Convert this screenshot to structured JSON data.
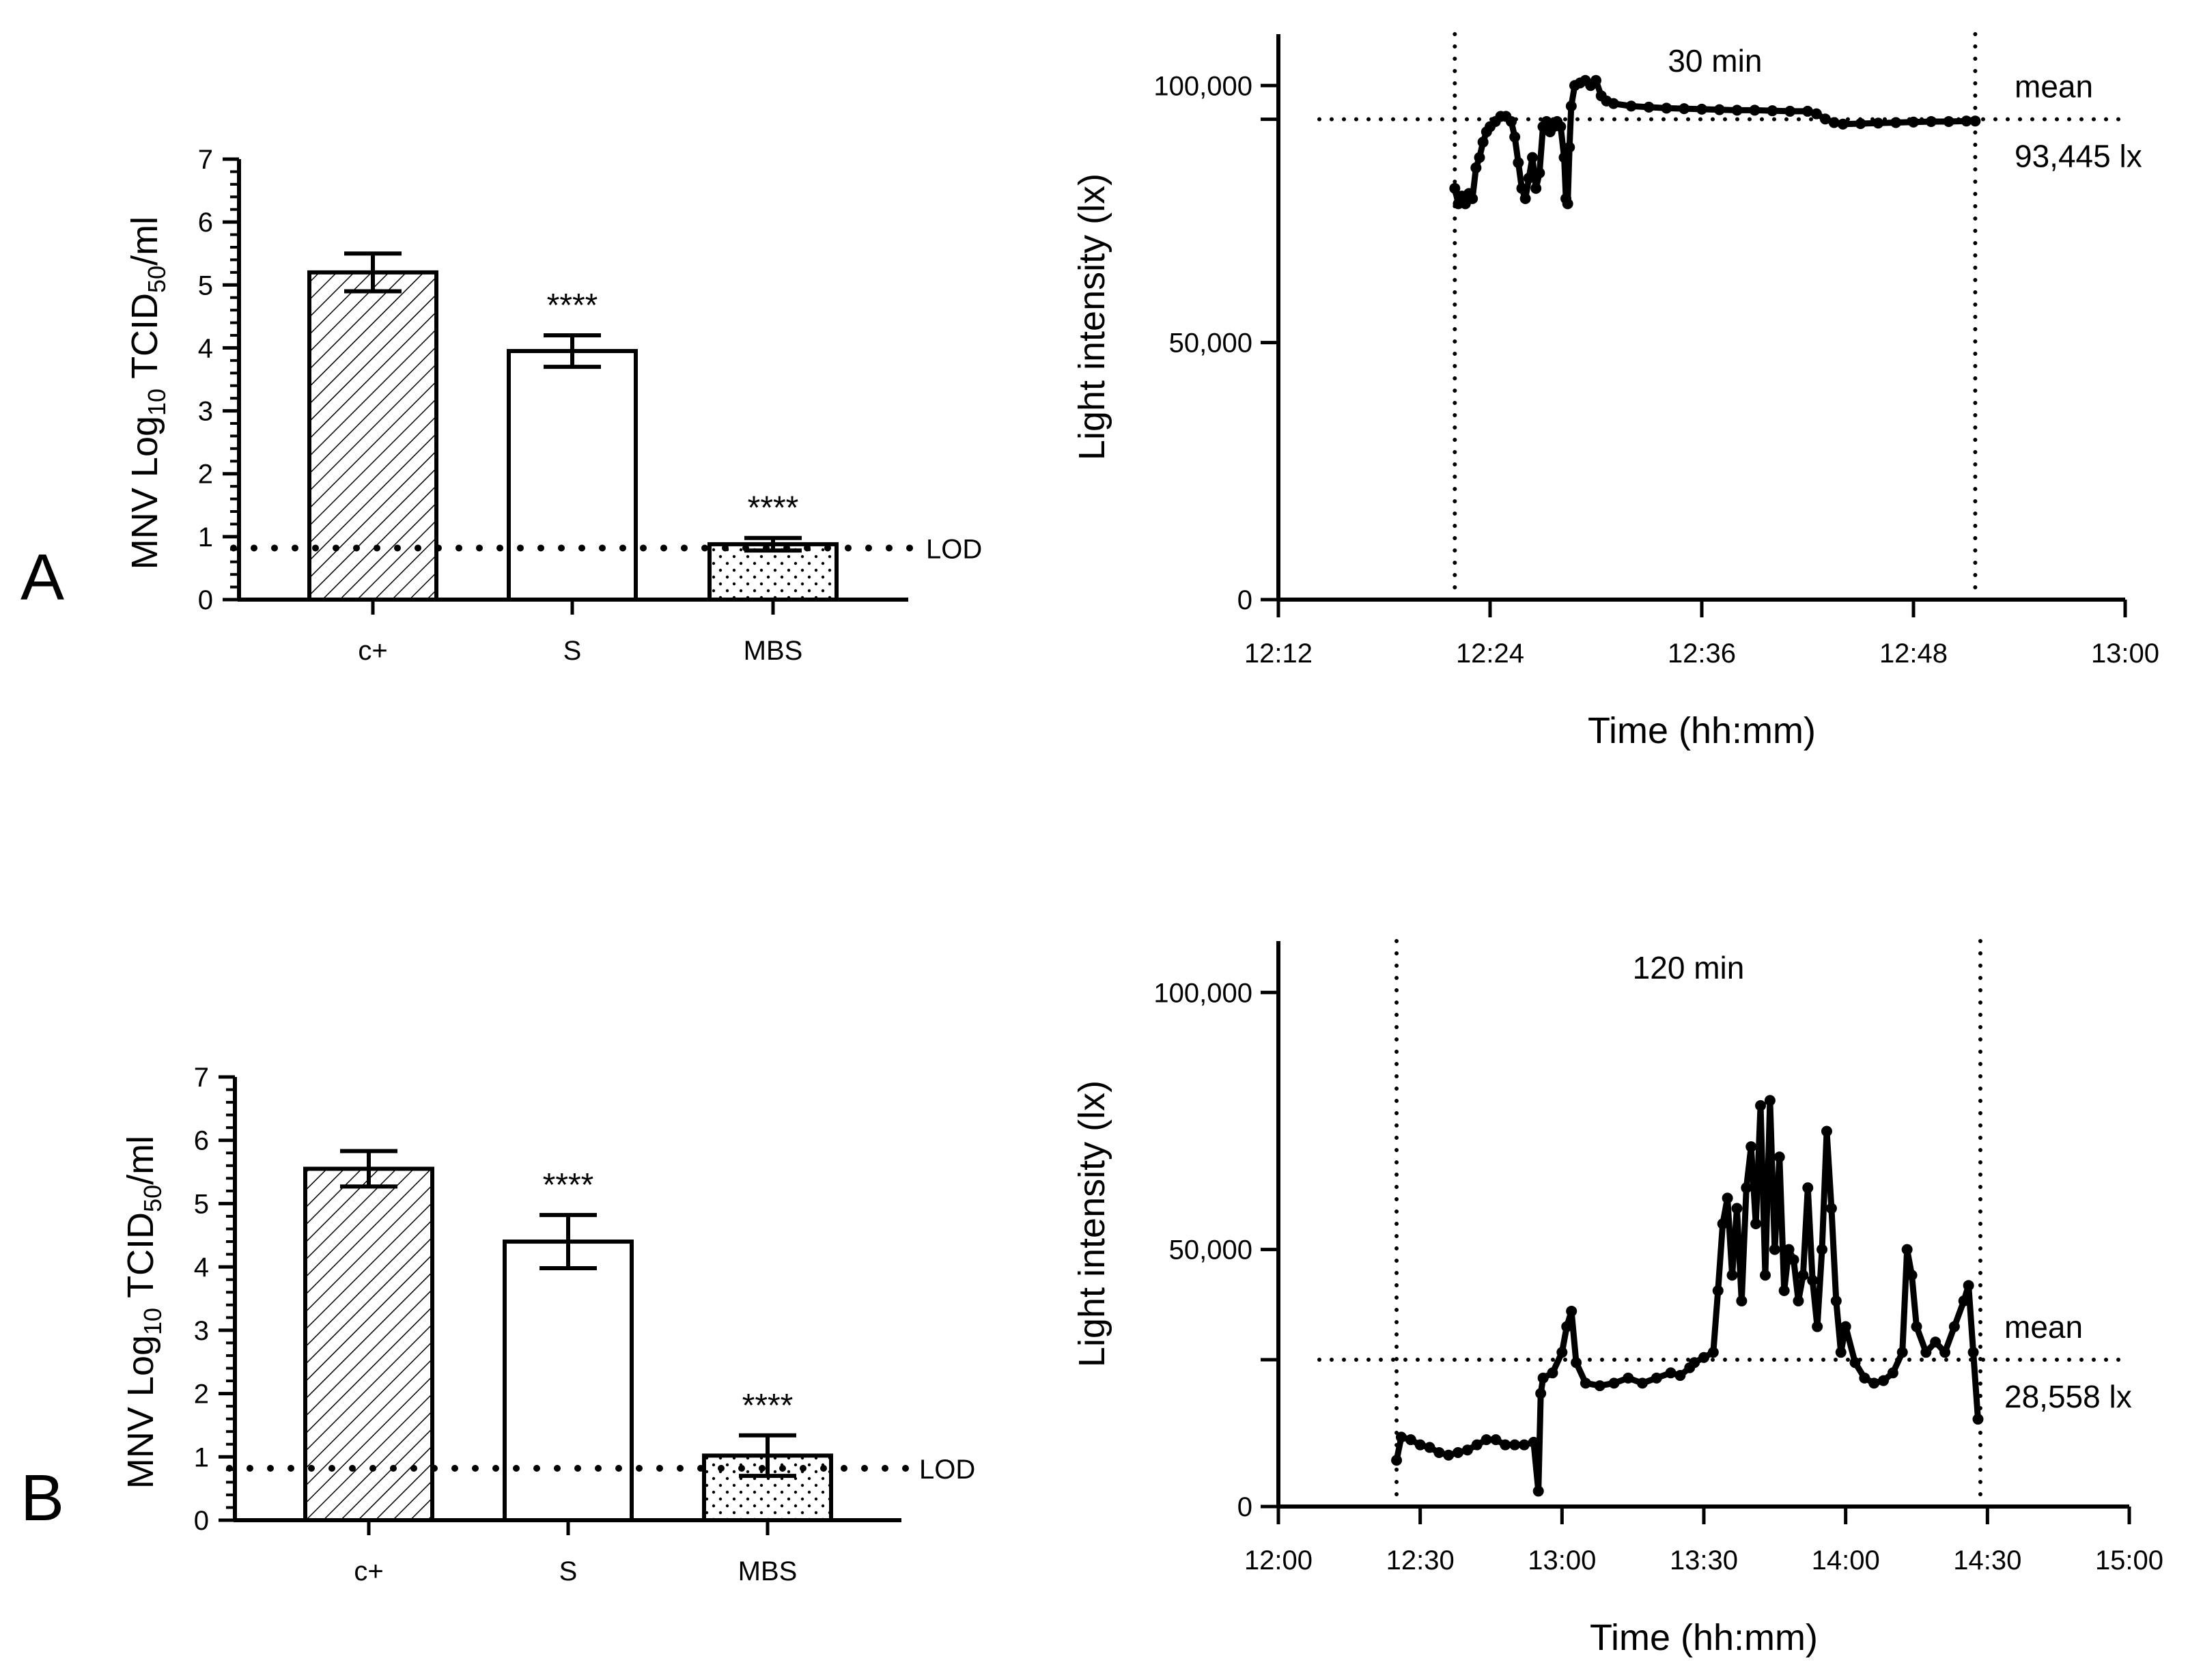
{
  "chart_data": [
    {
      "panel": "A",
      "type": "bar",
      "title": "",
      "ylabel_parts": [
        "MNV Log",
        "10",
        " TCID",
        "50",
        "/ml"
      ],
      "ylim": [
        0,
        7
      ],
      "yticks": [
        "0",
        "1",
        "2",
        "3",
        "4",
        "5",
        "6",
        "7"
      ],
      "categories": [
        "c+",
        "S",
        "MBS"
      ],
      "values": [
        5.2,
        3.95,
        0.88
      ],
      "error": [
        0.3,
        0.25,
        0.1
      ],
      "patterns": [
        "hatch",
        "none",
        "dots"
      ],
      "annotations": [
        "",
        "****",
        "****"
      ],
      "lod": {
        "value": 0.82,
        "label": "LOD"
      }
    },
    {
      "panel": "A",
      "type": "scatter",
      "xlabel": "Time (hh:mm)",
      "ylabel": "Light intensity (lx)",
      "xticks": [
        "12:12",
        "12:24",
        "12:36",
        "12:48",
        "13:00"
      ],
      "xlim_minutes": [
        732,
        780
      ],
      "yticks": [
        "0",
        "50,000",
        "100,000"
      ],
      "ylim": [
        0,
        110000
      ],
      "window_minutes": [
        742,
        771.5
      ],
      "window_label": "30 min",
      "mean_value": 93445,
      "mean_label": "mean",
      "mean_text": "93,445 lx",
      "points": [
        [
          742.0,
          80000
        ],
        [
          742.2,
          77000
        ],
        [
          742.4,
          78500
        ],
        [
          742.6,
          77000
        ],
        [
          742.8,
          79000
        ],
        [
          743.0,
          78000
        ],
        [
          743.2,
          84000
        ],
        [
          743.4,
          86000
        ],
        [
          743.6,
          89000
        ],
        [
          743.8,
          91000
        ],
        [
          744.0,
          92000
        ],
        [
          744.3,
          93000
        ],
        [
          744.6,
          94000
        ],
        [
          744.9,
          94000
        ],
        [
          745.2,
          93000
        ],
        [
          745.4,
          90000
        ],
        [
          745.6,
          85000
        ],
        [
          745.8,
          80000
        ],
        [
          746.0,
          78000
        ],
        [
          746.2,
          82000
        ],
        [
          746.4,
          86000
        ],
        [
          746.6,
          80000
        ],
        [
          746.8,
          83000
        ],
        [
          747.0,
          92000
        ],
        [
          747.2,
          93000
        ],
        [
          747.4,
          91000
        ],
        [
          747.6,
          92000
        ],
        [
          747.8,
          93000
        ],
        [
          748.0,
          92000
        ],
        [
          748.2,
          86000
        ],
        [
          748.3,
          78000
        ],
        [
          748.4,
          77000
        ],
        [
          748.5,
          88000
        ],
        [
          748.6,
          96000
        ],
        [
          748.8,
          100000
        ],
        [
          749.1,
          100500
        ],
        [
          749.4,
          101000
        ],
        [
          749.7,
          100000
        ],
        [
          750.0,
          101000
        ],
        [
          750.3,
          98000
        ],
        [
          750.6,
          97000
        ],
        [
          751.0,
          96500
        ],
        [
          752.0,
          96000
        ],
        [
          753.0,
          95800
        ],
        [
          754.0,
          95600
        ],
        [
          755.0,
          95500
        ],
        [
          756.0,
          95400
        ],
        [
          757.0,
          95300
        ],
        [
          758.0,
          95200
        ],
        [
          759.0,
          95200
        ],
        [
          760.0,
          95100
        ],
        [
          761.0,
          95000
        ],
        [
          762.0,
          95000
        ],
        [
          762.5,
          94500
        ],
        [
          763.0,
          93500
        ],
        [
          763.5,
          92800
        ],
        [
          764.0,
          92500
        ],
        [
          765.0,
          92600
        ],
        [
          766.0,
          92700
        ],
        [
          767.0,
          92800
        ],
        [
          768.0,
          92900
        ],
        [
          769.0,
          93000
        ],
        [
          770.0,
          93000
        ],
        [
          771.0,
          93100
        ],
        [
          771.5,
          93100
        ]
      ]
    },
    {
      "panel": "B",
      "type": "bar",
      "title": "",
      "ylabel_parts": [
        "MNV Log",
        "10",
        " TCID",
        "50",
        "/ml"
      ],
      "ylim": [
        0,
        7
      ],
      "yticks": [
        "0",
        "1",
        "2",
        "3",
        "4",
        "5",
        "6",
        "7"
      ],
      "categories": [
        "c+",
        "S",
        "MBS"
      ],
      "values": [
        5.55,
        4.4,
        1.02
      ],
      "error": [
        0.28,
        0.42,
        0.32
      ],
      "patterns": [
        "hatch",
        "none",
        "dots"
      ],
      "annotations": [
        "",
        "****",
        "****"
      ],
      "lod": {
        "value": 0.82,
        "label": "LOD"
      }
    },
    {
      "panel": "B",
      "type": "scatter",
      "xlabel": "Time (hh:mm)",
      "ylabel": "Light intensity (lx)",
      "xticks": [
        "12:00",
        "12:30",
        "13:00",
        "13:30",
        "14:00",
        "14:30",
        "15:00"
      ],
      "xlim_minutes": [
        720,
        900
      ],
      "yticks": [
        "0",
        "50,000",
        "100,000"
      ],
      "ylim": [
        0,
        110000
      ],
      "window_minutes": [
        745,
        868.5
      ],
      "window_label": "120 min",
      "mean_value": 28558,
      "mean_label": "mean",
      "mean_text": "28,558 lx",
      "points": [
        [
          745,
          9000
        ],
        [
          746,
          13500
        ],
        [
          748,
          13000
        ],
        [
          750,
          12000
        ],
        [
          752,
          11500
        ],
        [
          754,
          10500
        ],
        [
          756,
          10000
        ],
        [
          758,
          10500
        ],
        [
          760,
          11000
        ],
        [
          762,
          12000
        ],
        [
          764,
          13000
        ],
        [
          766,
          13000
        ],
        [
          768,
          12000
        ],
        [
          770,
          12000
        ],
        [
          772,
          12000
        ],
        [
          774,
          12500
        ],
        [
          775,
          3000
        ],
        [
          775.5,
          22000
        ],
        [
          776,
          25000
        ],
        [
          778,
          26000
        ],
        [
          780,
          30000
        ],
        [
          781,
          35000
        ],
        [
          782,
          38000
        ],
        [
          783,
          28000
        ],
        [
          785,
          24000
        ],
        [
          788,
          23500
        ],
        [
          791,
          24000
        ],
        [
          794,
          25000
        ],
        [
          797,
          24000
        ],
        [
          800,
          25000
        ],
        [
          803,
          26000
        ],
        [
          805,
          25500
        ],
        [
          807,
          27000
        ],
        [
          808,
          28000
        ],
        [
          810,
          29000
        ],
        [
          812,
          30000
        ],
        [
          813,
          42000
        ],
        [
          814,
          55000
        ],
        [
          815,
          60000
        ],
        [
          816,
          45000
        ],
        [
          817,
          58000
        ],
        [
          818,
          40000
        ],
        [
          819,
          62000
        ],
        [
          820,
          70000
        ],
        [
          821,
          55000
        ],
        [
          822,
          78000
        ],
        [
          823,
          45000
        ],
        [
          824,
          79000
        ],
        [
          825,
          50000
        ],
        [
          826,
          68000
        ],
        [
          827,
          42000
        ],
        [
          828,
          50000
        ],
        [
          829,
          48000
        ],
        [
          830,
          40000
        ],
        [
          831,
          45000
        ],
        [
          832,
          62000
        ],
        [
          833,
          44000
        ],
        [
          834,
          35000
        ],
        [
          835,
          50000
        ],
        [
          836,
          73000
        ],
        [
          837,
          58000
        ],
        [
          838,
          40000
        ],
        [
          839,
          30000
        ],
        [
          840,
          35000
        ],
        [
          842,
          28000
        ],
        [
          844,
          25000
        ],
        [
          846,
          24000
        ],
        [
          848,
          24500
        ],
        [
          850,
          26000
        ],
        [
          852,
          30000
        ],
        [
          853,
          50000
        ],
        [
          854,
          45000
        ],
        [
          855,
          35000
        ],
        [
          857,
          30000
        ],
        [
          859,
          32000
        ],
        [
          861,
          30000
        ],
        [
          863,
          35000
        ],
        [
          865,
          40000
        ],
        [
          866,
          43000
        ],
        [
          867,
          30000
        ],
        [
          868,
          17000
        ]
      ]
    }
  ],
  "colors": {
    "ink": "#000000",
    "background": "#ffffff"
  }
}
